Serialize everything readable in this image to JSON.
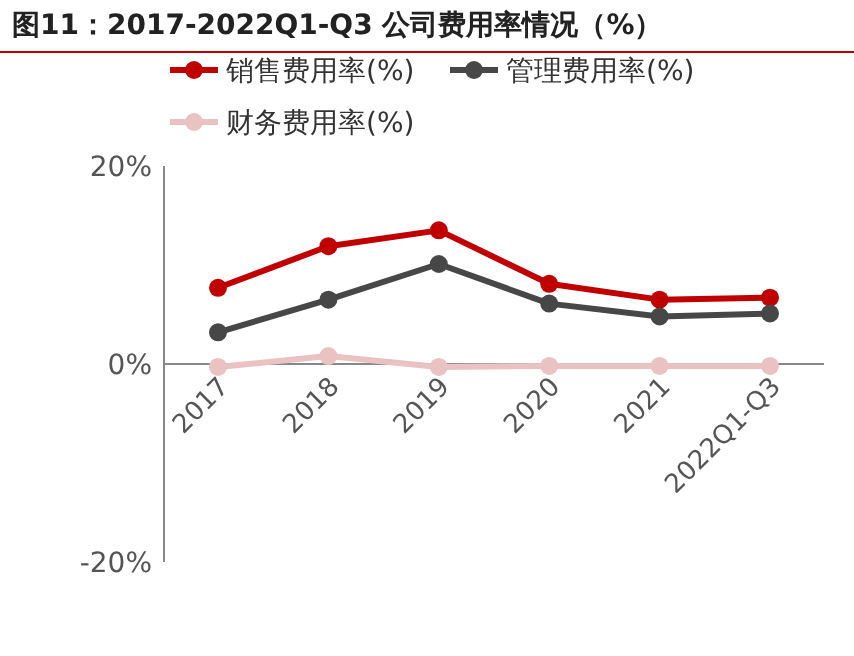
{
  "chart_data": {
    "type": "line",
    "title": "图11：2017-2022Q1-Q3 公司费用率情况（%）",
    "categories": [
      "2017",
      "2018",
      "2019",
      "2020",
      "2021",
      "2022Q1-Q3"
    ],
    "series": [
      {
        "name": "销售费用率(%)",
        "color": "#c00000",
        "values": [
          7.7,
          11.9,
          13.5,
          8.1,
          6.5,
          6.7
        ]
      },
      {
        "name": "管理费用率(%)",
        "color": "#474747",
        "values": [
          3.2,
          6.5,
          10.1,
          6.1,
          4.8,
          5.1
        ]
      },
      {
        "name": "财务费用率(%)",
        "color": "#eac2c2",
        "values": [
          -0.3,
          0.8,
          -0.3,
          -0.2,
          -0.2,
          -0.2
        ]
      }
    ],
    "ylim": [
      -20,
      20
    ],
    "yticks": [
      {
        "value": -20,
        "label": "-20%"
      },
      {
        "value": 0,
        "label": "0%"
      },
      {
        "value": 20,
        "label": "20%"
      }
    ],
    "marker": "circle",
    "line_style": "solid",
    "legend": "top left",
    "grid": false
  }
}
